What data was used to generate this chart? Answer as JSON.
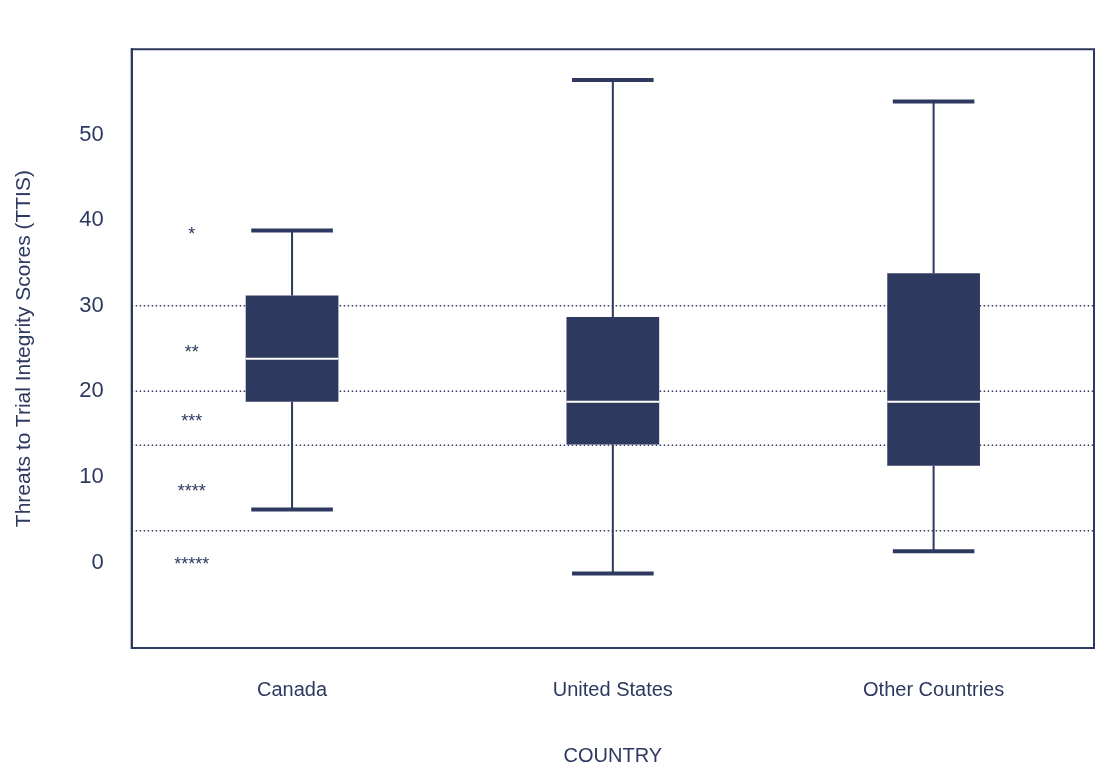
{
  "chart_data": {
    "type": "box",
    "xlabel": "COUNTRY",
    "ylabel": "Threats to Trial Integrity Scores (TTIS)",
    "categories": [
      "Canada",
      "United States",
      "Other Countries"
    ],
    "color": "#2e3960",
    "boxes": [
      {
        "low": 6.2,
        "q1": 18.8,
        "median": 23.8,
        "q3": 31.2,
        "high": 38.8
      },
      {
        "low": -1.3,
        "q1": 13.8,
        "median": 18.8,
        "q3": 28.7,
        "high": 56.4
      },
      {
        "low": 1.3,
        "q1": 11.3,
        "median": 18.8,
        "q3": 33.8,
        "high": 53.9
      }
    ],
    "ylim": [
      -10,
      60
    ],
    "yticks": [
      0,
      10,
      20,
      30,
      40,
      50
    ],
    "grid": false,
    "legend": false,
    "ref_lines": [
      {
        "axis": "y",
        "value": 30,
        "line_style": "dotted"
      },
      {
        "axis": "y",
        "value": 20,
        "line_style": "dotted"
      },
      {
        "axis": "y",
        "value": 13.7,
        "line_style": "dotted"
      },
      {
        "axis": "y",
        "value": 3.7,
        "line_style": "dotted"
      }
    ],
    "annotations": [
      "*",
      "**",
      "***",
      "****",
      "*****"
    ]
  }
}
